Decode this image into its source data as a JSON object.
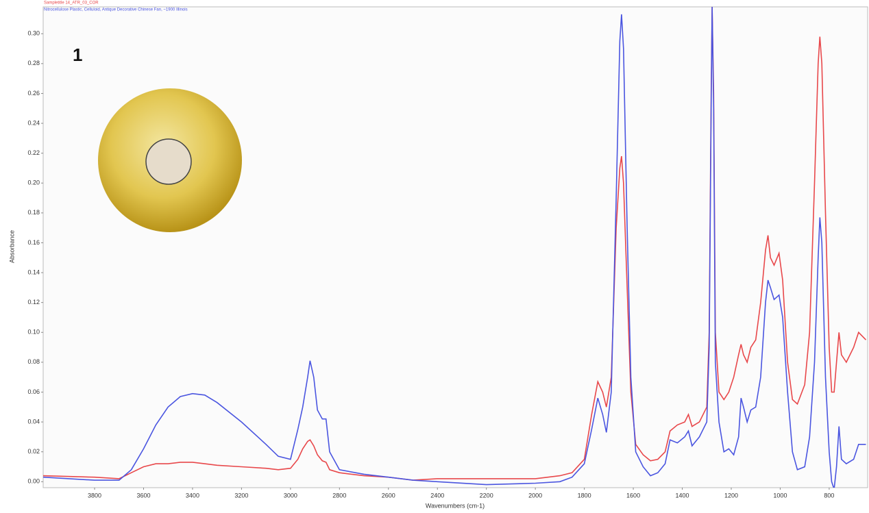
{
  "chart_data": {
    "type": "line",
    "title_lines": [
      "Sampletitle 14_ATR_03_COR",
      "Nitrocellulose Plastic, Celluloid, Antique Decorative Chinese Fan, ~1900 Illinois"
    ],
    "annotation": "1",
    "x_label": "Wavenumbers (cm-1)",
    "y_label": "Absorbance",
    "xlim": [
      4010,
      643
    ],
    "ylim": [
      -0.004,
      0.318
    ],
    "xticks": [
      3800,
      3600,
      3400,
      3200,
      3000,
      2800,
      2600,
      2400,
      2200,
      2000,
      1800,
      1600,
      1400,
      1200,
      1000,
      800
    ],
    "yticks": [
      {
        "value": 0,
        "label": "0.00"
      },
      {
        "value": 0.02,
        "label": "0.02"
      },
      {
        "value": 0.04,
        "label": "0.04"
      },
      {
        "value": 0.06,
        "label": "0.06"
      },
      {
        "value": 0.08,
        "label": "0.08"
      },
      {
        "value": 0.1,
        "label": "0.10"
      },
      {
        "value": 0.12,
        "label": "0.12"
      },
      {
        "value": 0.14,
        "label": "0.14"
      },
      {
        "value": 0.16,
        "label": "0.16"
      },
      {
        "value": 0.18,
        "label": "0.18"
      },
      {
        "value": 0.2,
        "label": "0.20"
      },
      {
        "value": 0.22,
        "label": "0.22"
      },
      {
        "value": 0.24,
        "label": "0.24"
      },
      {
        "value": 0.26,
        "label": "0.26"
      },
      {
        "value": 0.28,
        "label": "0.28"
      },
      {
        "value": 0.3,
        "label": "0.30"
      }
    ],
    "x": [
      4010,
      3800,
      3700,
      3650,
      3600,
      3550,
      3500,
      3450,
      3400,
      3350,
      3300,
      3200,
      3100,
      3050,
      3000,
      2970,
      2950,
      2930,
      2920,
      2905,
      2890,
      2870,
      2855,
      2840,
      2800,
      2700,
      2600,
      2500,
      2400,
      2200,
      2000,
      1900,
      1850,
      1800,
      1770,
      1745,
      1725,
      1710,
      1690,
      1670,
      1655,
      1648,
      1640,
      1625,
      1610,
      1590,
      1560,
      1530,
      1500,
      1470,
      1450,
      1420,
      1390,
      1375,
      1360,
      1330,
      1300,
      1290,
      1282,
      1278,
      1272,
      1265,
      1250,
      1230,
      1210,
      1190,
      1170,
      1160,
      1150,
      1135,
      1120,
      1100,
      1080,
      1060,
      1050,
      1040,
      1025,
      1005,
      990,
      970,
      950,
      930,
      900,
      880,
      860,
      845,
      838,
      830,
      815,
      800,
      790,
      780,
      770,
      760,
      750,
      730,
      700,
      680,
      650
    ],
    "series": [
      {
        "name": "Sampletitle 14_ATR_03_COR",
        "color": "#e8474a",
        "values": [
          0.004,
          0.003,
          0.002,
          0.006,
          0.01,
          0.012,
          0.012,
          0.013,
          0.013,
          0.012,
          0.011,
          0.01,
          0.009,
          0.008,
          0.009,
          0.015,
          0.022,
          0.027,
          0.028,
          0.024,
          0.018,
          0.014,
          0.013,
          0.008,
          0.006,
          0.004,
          0.003,
          0.001,
          0.002,
          0.002,
          0.002,
          0.004,
          0.006,
          0.015,
          0.045,
          0.067,
          0.06,
          0.05,
          0.07,
          0.17,
          0.21,
          0.218,
          0.2,
          0.13,
          0.06,
          0.025,
          0.018,
          0.014,
          0.015,
          0.02,
          0.034,
          0.038,
          0.04,
          0.045,
          0.037,
          0.04,
          0.05,
          0.1,
          0.26,
          0.318,
          0.26,
          0.1,
          0.06,
          0.055,
          0.06,
          0.07,
          0.085,
          0.092,
          0.085,
          0.08,
          0.09,
          0.095,
          0.12,
          0.155,
          0.165,
          0.15,
          0.145,
          0.153,
          0.135,
          0.08,
          0.055,
          0.052,
          0.065,
          0.1,
          0.2,
          0.28,
          0.298,
          0.28,
          0.18,
          0.09,
          0.06,
          0.06,
          0.08,
          0.1,
          0.085,
          0.08,
          0.09,
          0.1,
          0.095
        ]
      },
      {
        "name": "Nitrocellulose Plastic, Celluloid, Antique Decorative Chinese Fan, ~1900 Illinois",
        "color": "#4a55e0",
        "values": [
          0.003,
          0.001,
          0.001,
          0.008,
          0.022,
          0.038,
          0.05,
          0.057,
          0.059,
          0.058,
          0.053,
          0.04,
          0.025,
          0.017,
          0.015,
          0.035,
          0.05,
          0.07,
          0.081,
          0.07,
          0.048,
          0.042,
          0.042,
          0.02,
          0.008,
          0.005,
          0.003,
          0.001,
          0,
          -0.002,
          -0.001,
          0,
          0.003,
          0.012,
          0.035,
          0.056,
          0.045,
          0.033,
          0.06,
          0.19,
          0.295,
          0.313,
          0.29,
          0.17,
          0.07,
          0.02,
          0.01,
          0.004,
          0.006,
          0.012,
          0.028,
          0.026,
          0.03,
          0.034,
          0.024,
          0.03,
          0.04,
          0.09,
          0.25,
          0.318,
          0.25,
          0.08,
          0.04,
          0.02,
          0.022,
          0.018,
          0.03,
          0.056,
          0.05,
          0.04,
          0.048,
          0.05,
          0.07,
          0.12,
          0.135,
          0.13,
          0.122,
          0.125,
          0.11,
          0.06,
          0.02,
          0.008,
          0.01,
          0.03,
          0.08,
          0.15,
          0.177,
          0.16,
          0.07,
          0.02,
          0,
          -0.005,
          0.01,
          0.037,
          0.015,
          0.012,
          0.015,
          0.025,
          0.025
        ]
      }
    ]
  }
}
